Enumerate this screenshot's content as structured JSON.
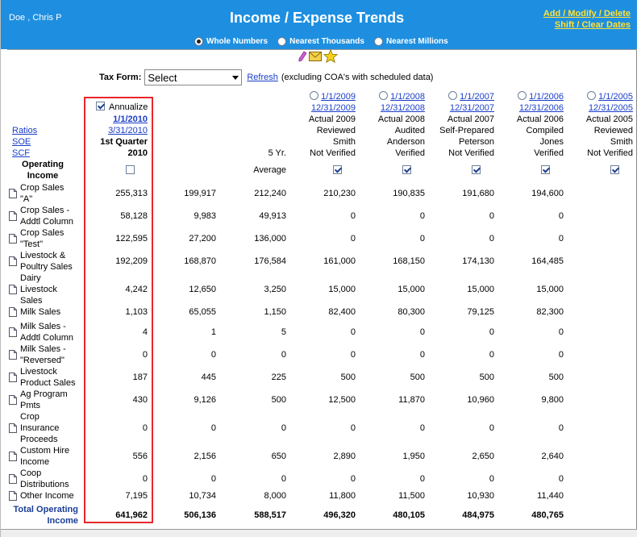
{
  "header": {
    "user": "Doe , Chris P",
    "title": "Income / Expense Trends",
    "link_add": "Add / Modify / Delete",
    "link_shift": "Shift / Clear Dates",
    "rounding": [
      {
        "label": "Whole Numbers",
        "selected": true
      },
      {
        "label": "Nearest Thousands",
        "selected": false
      },
      {
        "label": "Nearest Millions",
        "selected": false
      }
    ]
  },
  "icons": {
    "pen": "pencil-icon",
    "mail": "envelope-icon",
    "star": "star-icon"
  },
  "tax": {
    "label": "Tax Form:",
    "select": "Select",
    "refresh": "Refresh",
    "note": "(excluding COA's with scheduled data)"
  },
  "side_links": [
    "Ratios",
    "SOE",
    "SCF"
  ],
  "current_col": {
    "annualize": "Annualize",
    "date_from": "1/1/2010",
    "date_to": "3/31/2010",
    "period": "1st Quarter",
    "year": "2010"
  },
  "avg_col": {
    "label1": "5 Yr.",
    "label2": "Average"
  },
  "year_cols": [
    {
      "from": "1/1/2009",
      "to": "12/31/2009",
      "type": "Actual 2009",
      "level": "Reviewed",
      "preparer": "Smith",
      "status": "Not Verified"
    },
    {
      "from": "1/1/2008",
      "to": "12/31/2008",
      "type": "Actual 2008",
      "level": "Audited",
      "preparer": "Anderson",
      "status": "Verified"
    },
    {
      "from": "1/1/2007",
      "to": "12/31/2007",
      "type": "Actual 2007",
      "level": "Self-Prepared",
      "preparer": "Peterson",
      "status": "Not Verified"
    },
    {
      "from": "1/1/2006",
      "to": "12/31/2006",
      "type": "Actual 2006",
      "level": "Compiled",
      "preparer": "Jones",
      "status": "Verified"
    },
    {
      "from": "1/1/2005",
      "to": "12/31/2005",
      "type": "Actual 2005",
      "level": "Reviewed",
      "preparer": "Smith",
      "status": "Not Verified"
    }
  ],
  "section_title": [
    "Operating",
    "Income"
  ],
  "rows": [
    {
      "label": [
        "Crop Sales",
        "\"A\""
      ],
      "cur": "255,313",
      "col2": "199,917",
      "avg": "212,240",
      "y": [
        "210,230",
        "190,835",
        "191,680",
        "194,600"
      ]
    },
    {
      "label": [
        "Crop Sales -",
        "Addtl Column"
      ],
      "cur": "58,128",
      "col2": "9,983",
      "avg": "49,913",
      "y": [
        "0",
        "0",
        "0",
        "0"
      ]
    },
    {
      "label": [
        "Crop Sales",
        "\"Test\""
      ],
      "cur": "122,595",
      "col2": "27,200",
      "avg": "136,000",
      "y": [
        "0",
        "0",
        "0",
        "0"
      ]
    },
    {
      "label": [
        "Livestock &",
        "Poultry Sales"
      ],
      "cur": "192,209",
      "col2": "168,870",
      "avg": "176,584",
      "y": [
        "161,000",
        "168,150",
        "174,130",
        "164,485"
      ]
    },
    {
      "label": [
        "Dairy",
        "Livestock",
        "Sales"
      ],
      "cur": "4,242",
      "col2": "12,650",
      "avg": "3,250",
      "y": [
        "15,000",
        "15,000",
        "15,000",
        "15,000"
      ]
    },
    {
      "label": [
        "Milk Sales"
      ],
      "cur": "1,103",
      "col2": "65,055",
      "avg": "1,150",
      "y": [
        "82,400",
        "80,300",
        "79,125",
        "82,300"
      ]
    },
    {
      "label": [
        "Milk Sales -",
        "Addtl Column"
      ],
      "cur": "4",
      "col2": "1",
      "avg": "5",
      "y": [
        "0",
        "0",
        "0",
        "0"
      ]
    },
    {
      "label": [
        "Milk Sales -",
        "\"Reversed\""
      ],
      "cur": "0",
      "col2": "0",
      "avg": "0",
      "y": [
        "0",
        "0",
        "0",
        "0"
      ]
    },
    {
      "label": [
        "Livestock",
        "Product Sales"
      ],
      "cur": "187",
      "col2": "445",
      "avg": "225",
      "y": [
        "500",
        "500",
        "500",
        "500"
      ]
    },
    {
      "label": [
        "Ag Program",
        "Pmts"
      ],
      "cur": "430",
      "col2": "9,126",
      "avg": "500",
      "y": [
        "12,500",
        "11,870",
        "10,960",
        "9,800"
      ]
    },
    {
      "label": [
        "Crop",
        "Insurance",
        "Proceeds"
      ],
      "cur": "0",
      "col2": "0",
      "avg": "0",
      "y": [
        "0",
        "0",
        "0",
        "0"
      ]
    },
    {
      "label": [
        "Custom Hire",
        "Income"
      ],
      "cur": "556",
      "col2": "2,156",
      "avg": "650",
      "y": [
        "2,890",
        "1,950",
        "2,650",
        "2,640"
      ]
    },
    {
      "label": [
        "Coop",
        "Distributions"
      ],
      "cur": "0",
      "col2": "0",
      "avg": "0",
      "y": [
        "0",
        "0",
        "0",
        "0"
      ]
    },
    {
      "label": [
        "Other Income"
      ],
      "cur": "7,195",
      "col2": "10,734",
      "avg": "8,000",
      "y": [
        "11,800",
        "11,500",
        "10,930",
        "11,440"
      ]
    }
  ],
  "total": {
    "label": [
      "Total Operating",
      "Income"
    ],
    "cur": "641,962",
    "col2": "506,136",
    "avg": "588,517",
    "y": [
      "496,320",
      "480,105",
      "484,975",
      "480,765"
    ]
  }
}
